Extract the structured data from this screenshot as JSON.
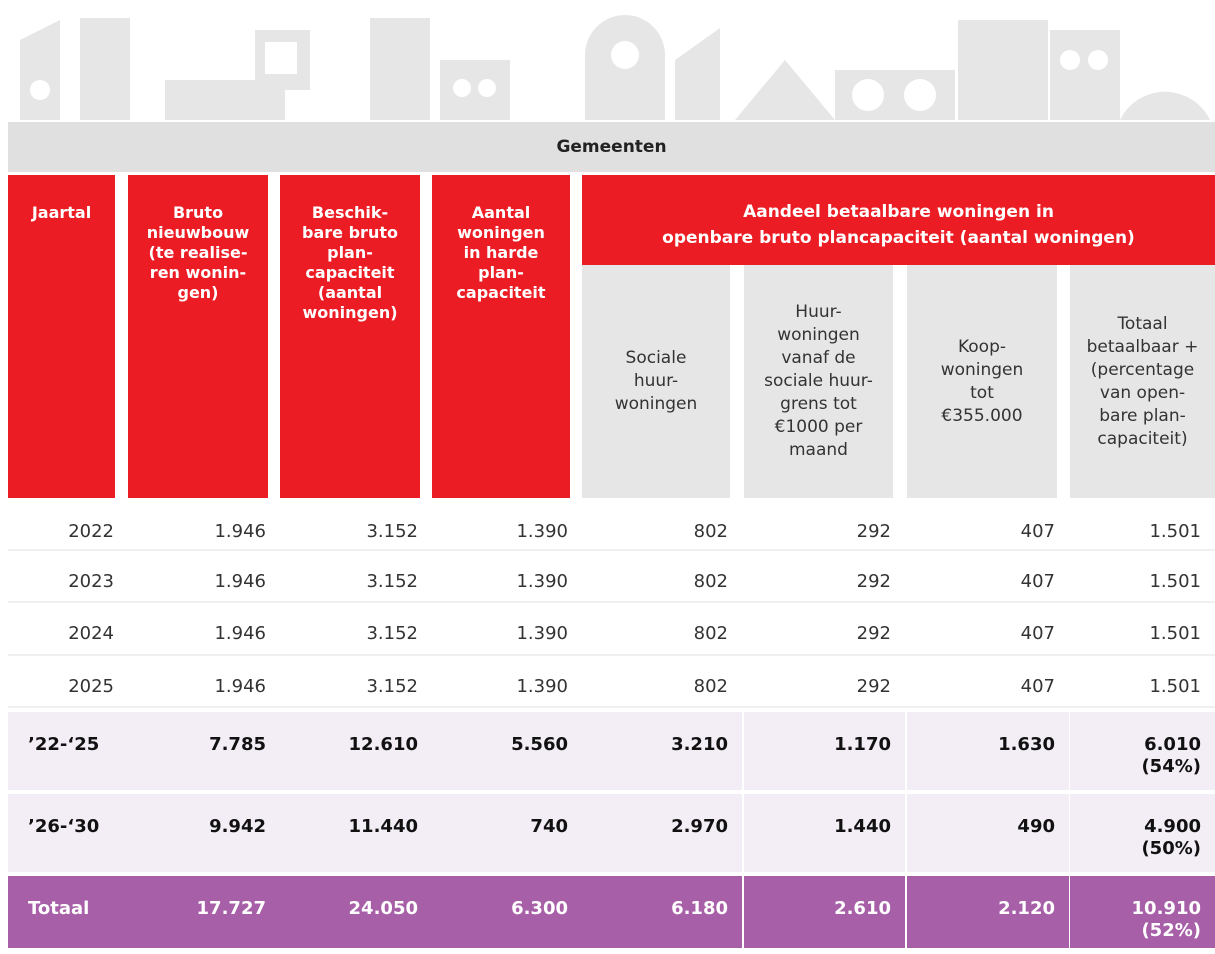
{
  "header": {
    "title": "Gemeenten",
    "columns": [
      "Jaartal",
      "Bruto\nnieuwbouw\n(te realise-\nren wonin-\ngen)",
      "Beschik-\nbare bruto\nplan-\ncapaciteit\n(aantal\nwoningen)",
      "Aantal\nwoningen\nin harde\nplan-\ncapaciteit"
    ],
    "group": "Aandeel betaalbare woningen in\nopenbare bruto plancapaciteit (aantal woningen)",
    "subcolumns": [
      "Sociale\nhuur-\nwoningen",
      "Huur-\nwoningen\nvanaf de\nsociale huur-\ngrens tot\n€1000 per\nmaand",
      "Koop-\nwoningen\ntot\n€355.000",
      "Totaal\nbetaalbaar +\n(percentage\nvan open-\nbare plan-\ncapaciteit)"
    ]
  },
  "table": {
    "rows": [
      [
        "2022",
        "1.946",
        "3.152",
        "1.390",
        "802",
        "292",
        "407",
        "1.501"
      ],
      [
        "2023",
        "1.946",
        "3.152",
        "1.390",
        "802",
        "292",
        "407",
        "1.501"
      ],
      [
        "2024",
        "1.946",
        "3.152",
        "1.390",
        "802",
        "292",
        "407",
        "1.501"
      ],
      [
        "2025",
        "1.946",
        "3.152",
        "1.390",
        "802",
        "292",
        "407",
        "1.501"
      ],
      [
        "’22-‘25",
        "7.785",
        "12.610",
        "5.560",
        "3.210",
        "1.170",
        "1.630",
        "6.010\n(54%)"
      ],
      [
        "’26-‘30",
        "9.942",
        "11.440",
        "740",
        "2.970",
        "1.440",
        "490",
        "4.900\n(50%)"
      ],
      [
        "Totaal",
        "17.727",
        "24.050",
        "6.300",
        "6.180",
        "2.610",
        "2.120",
        "10.910\n(52%)"
      ]
    ]
  }
}
